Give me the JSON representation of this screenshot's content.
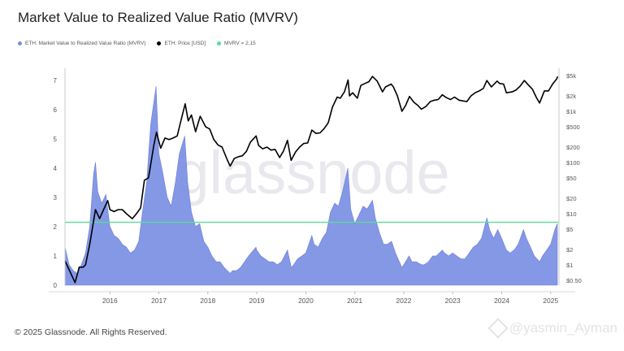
{
  "title": "Market Value to Realized Value Ratio (MVRV)",
  "legend": {
    "mvrv": "ETH: Market Value to Realized Value Ratio (MVRV)",
    "price": "ETH: Price [USD]",
    "threshold": "MVRV = 2.15"
  },
  "watermark": "glassnode",
  "copyright": "© 2025 Glassnode. All Rights Reserved.",
  "attribution": "@yasmin_Ayman",
  "colors": {
    "mvrv": "#7b8fe4",
    "price": "#000000",
    "threshold": "#58dc9a"
  },
  "chart_data": {
    "type": "area",
    "x_axis": {
      "type": "date",
      "range": [
        "2015-08-01",
        "2025-09-01"
      ],
      "ticks": [
        "2016",
        "2017",
        "2018",
        "2019",
        "2020",
        "2021",
        "2022",
        "2023",
        "2024",
        "2025"
      ]
    },
    "y_left": {
      "range": [
        0,
        7.3
      ],
      "ticks": [
        "0",
        "1",
        "2",
        "3",
        "4",
        "5",
        "6",
        "7"
      ]
    },
    "y_right": {
      "scale": "log",
      "range": [
        0.4,
        6000
      ],
      "ticks": [
        {
          "label": "$0.50",
          "value": 0.5
        },
        {
          "label": "$1",
          "value": 1
        },
        {
          "label": "$2",
          "value": 2
        },
        {
          "label": "$5",
          "value": 5
        },
        {
          "label": "$10",
          "value": 10
        },
        {
          "label": "$20",
          "value": 20
        },
        {
          "label": "$50",
          "value": 50
        },
        {
          "label": "$100",
          "value": 100
        },
        {
          "label": "$200",
          "value": 200
        },
        {
          "label": "$500",
          "value": 500
        },
        {
          "label": "$1k",
          "value": 1000
        },
        {
          "label": "$2k",
          "value": 2000
        },
        {
          "label": "$5k",
          "value": 5000
        }
      ]
    },
    "threshold": 2.15,
    "grid": false,
    "legend_position": "top-left",
    "series": [
      {
        "name": "ETH: Market Value to Realized Value Ratio (MVRV)",
        "type": "area",
        "axis": "left",
        "points": [
          [
            "2015-08-01",
            1.3
          ],
          [
            "2015-09-01",
            0.7
          ],
          [
            "2015-10-01",
            0.5
          ],
          [
            "2015-11-01",
            0.4
          ],
          [
            "2015-12-01",
            0.7
          ],
          [
            "2016-01-01",
            1.1
          ],
          [
            "2016-02-01",
            2.0
          ],
          [
            "2016-03-01",
            3.8
          ],
          [
            "2016-03-15",
            4.2
          ],
          [
            "2016-04-01",
            3.2
          ],
          [
            "2016-05-01",
            2.8
          ],
          [
            "2016-06-01",
            3.1
          ],
          [
            "2016-07-01",
            2.0
          ],
          [
            "2016-08-01",
            1.7
          ],
          [
            "2016-09-01",
            1.6
          ],
          [
            "2016-10-01",
            1.4
          ],
          [
            "2016-11-01",
            1.3
          ],
          [
            "2016-12-01",
            1.1
          ],
          [
            "2017-01-01",
            1.2
          ],
          [
            "2017-02-01",
            1.5
          ],
          [
            "2017-03-01",
            2.5
          ],
          [
            "2017-04-01",
            3.5
          ],
          [
            "2017-05-01",
            5.5
          ],
          [
            "2017-06-10",
            6.8
          ],
          [
            "2017-07-01",
            4.5
          ],
          [
            "2017-08-01",
            3.8
          ],
          [
            "2017-09-01",
            3.0
          ],
          [
            "2017-10-01",
            2.7
          ],
          [
            "2017-11-01",
            3.5
          ],
          [
            "2017-12-01",
            4.5
          ],
          [
            "2018-01-10",
            5.1
          ],
          [
            "2018-02-01",
            3.5
          ],
          [
            "2018-03-01",
            2.5
          ],
          [
            "2018-04-01",
            2.0
          ],
          [
            "2018-05-01",
            2.1
          ],
          [
            "2018-06-01",
            1.5
          ],
          [
            "2018-07-01",
            1.3
          ],
          [
            "2018-08-01",
            1.0
          ],
          [
            "2018-09-01",
            0.8
          ],
          [
            "2018-10-01",
            0.8
          ],
          [
            "2018-11-01",
            0.6
          ],
          [
            "2018-12-15",
            0.4
          ],
          [
            "2019-01-01",
            0.5
          ],
          [
            "2019-02-01",
            0.5
          ],
          [
            "2019-03-01",
            0.6
          ],
          [
            "2019-04-01",
            0.8
          ],
          [
            "2019-05-01",
            1.0
          ],
          [
            "2019-06-25",
            1.3
          ],
          [
            "2019-07-01",
            1.2
          ],
          [
            "2019-08-01",
            1.0
          ],
          [
            "2019-09-01",
            0.9
          ],
          [
            "2019-10-01",
            0.8
          ],
          [
            "2019-11-01",
            0.8
          ],
          [
            "2019-12-01",
            0.7
          ],
          [
            "2020-01-01",
            0.8
          ],
          [
            "2020-02-15",
            1.2
          ],
          [
            "2020-03-15",
            0.6
          ],
          [
            "2020-04-01",
            0.7
          ],
          [
            "2020-05-01",
            0.9
          ],
          [
            "2020-06-01",
            1.0
          ],
          [
            "2020-07-01",
            1.1
          ],
          [
            "2020-08-15",
            1.7
          ],
          [
            "2020-09-01",
            1.4
          ],
          [
            "2020-10-01",
            1.3
          ],
          [
            "2020-11-01",
            1.6
          ],
          [
            "2020-12-01",
            1.8
          ],
          [
            "2021-01-01",
            2.5
          ],
          [
            "2021-02-01",
            2.8
          ],
          [
            "2021-03-01",
            2.7
          ],
          [
            "2021-04-01",
            3.2
          ],
          [
            "2021-05-10",
            4.0
          ],
          [
            "2021-06-01",
            2.6
          ],
          [
            "2021-07-01",
            2.1
          ],
          [
            "2021-08-01",
            2.4
          ],
          [
            "2021-09-01",
            2.7
          ],
          [
            "2021-10-01",
            2.6
          ],
          [
            "2021-11-10",
            2.9
          ],
          [
            "2021-12-01",
            2.3
          ],
          [
            "2022-01-01",
            1.8
          ],
          [
            "2022-02-01",
            1.4
          ],
          [
            "2022-03-01",
            1.4
          ],
          [
            "2022-04-01",
            1.5
          ],
          [
            "2022-05-01",
            1.1
          ],
          [
            "2022-06-18",
            0.6
          ],
          [
            "2022-07-01",
            0.7
          ],
          [
            "2022-08-10",
            1.0
          ],
          [
            "2022-09-01",
            0.8
          ],
          [
            "2022-10-01",
            0.8
          ],
          [
            "2022-11-10",
            0.7
          ],
          [
            "2022-12-01",
            0.7
          ],
          [
            "2023-01-01",
            0.8
          ],
          [
            "2023-02-01",
            1.0
          ],
          [
            "2023-03-01",
            1.0
          ],
          [
            "2023-04-15",
            1.2
          ],
          [
            "2023-05-01",
            1.1
          ],
          [
            "2023-06-01",
            1.0
          ],
          [
            "2023-07-01",
            1.1
          ],
          [
            "2023-08-01",
            1.0
          ],
          [
            "2023-09-01",
            0.9
          ],
          [
            "2023-10-01",
            0.9
          ],
          [
            "2023-11-01",
            1.1
          ],
          [
            "2023-12-01",
            1.3
          ],
          [
            "2024-01-01",
            1.4
          ],
          [
            "2024-02-01",
            1.6
          ],
          [
            "2024-03-12",
            2.3
          ],
          [
            "2024-04-01",
            1.9
          ],
          [
            "2024-05-01",
            1.6
          ],
          [
            "2024-06-01",
            1.9
          ],
          [
            "2024-07-01",
            1.6
          ],
          [
            "2024-08-05",
            1.2
          ],
          [
            "2024-09-01",
            1.1
          ],
          [
            "2024-10-01",
            1.2
          ],
          [
            "2024-11-01",
            1.4
          ],
          [
            "2024-12-10",
            1.9
          ],
          [
            "2025-01-01",
            1.6
          ],
          [
            "2025-02-01",
            1.3
          ],
          [
            "2025-03-01",
            1.0
          ],
          [
            "2025-04-09",
            0.8
          ],
          [
            "2025-05-01",
            1.0
          ],
          [
            "2025-06-01",
            1.2
          ],
          [
            "2025-07-01",
            1.4
          ],
          [
            "2025-08-01",
            1.9
          ],
          [
            "2025-08-20",
            2.1
          ]
        ]
      },
      {
        "name": "ETH: Price [USD]",
        "type": "line",
        "axis": "right",
        "points": [
          [
            "2015-08-01",
            1.2
          ],
          [
            "2015-09-01",
            0.8
          ],
          [
            "2015-10-15",
            0.45
          ],
          [
            "2015-11-15",
            0.9
          ],
          [
            "2015-12-15",
            0.9
          ],
          [
            "2016-01-01",
            1.0
          ],
          [
            "2016-02-01",
            2.5
          ],
          [
            "2016-03-15",
            12
          ],
          [
            "2016-04-15",
            8
          ],
          [
            "2016-05-15",
            12
          ],
          [
            "2016-06-15",
            18
          ],
          [
            "2016-07-01",
            12
          ],
          [
            "2016-08-01",
            11
          ],
          [
            "2016-09-01",
            12
          ],
          [
            "2016-10-01",
            12
          ],
          [
            "2016-11-01",
            10
          ],
          [
            "2016-12-15",
            8
          ],
          [
            "2017-01-15",
            10
          ],
          [
            "2017-02-15",
            13
          ],
          [
            "2017-03-15",
            45
          ],
          [
            "2017-04-15",
            50
          ],
          [
            "2017-05-25",
            220
          ],
          [
            "2017-06-13",
            390
          ],
          [
            "2017-07-15",
            190
          ],
          [
            "2017-08-15",
            300
          ],
          [
            "2017-09-15",
            280
          ],
          [
            "2017-10-15",
            300
          ],
          [
            "2017-11-15",
            330
          ],
          [
            "2017-12-15",
            700
          ],
          [
            "2018-01-13",
            1400
          ],
          [
            "2018-02-05",
            650
          ],
          [
            "2018-03-01",
            850
          ],
          [
            "2018-04-01",
            400
          ],
          [
            "2018-05-05",
            800
          ],
          [
            "2018-06-15",
            500
          ],
          [
            "2018-07-15",
            450
          ],
          [
            "2018-08-15",
            280
          ],
          [
            "2018-09-15",
            220
          ],
          [
            "2018-10-15",
            200
          ],
          [
            "2018-11-25",
            110
          ],
          [
            "2018-12-15",
            85
          ],
          [
            "2019-01-15",
            120
          ],
          [
            "2019-02-15",
            130
          ],
          [
            "2019-03-15",
            135
          ],
          [
            "2019-04-15",
            165
          ],
          [
            "2019-05-15",
            250
          ],
          [
            "2019-06-26",
            330
          ],
          [
            "2019-07-15",
            215
          ],
          [
            "2019-08-15",
            185
          ],
          [
            "2019-09-15",
            200
          ],
          [
            "2019-10-15",
            175
          ],
          [
            "2019-11-15",
            180
          ],
          [
            "2019-12-18",
            125
          ],
          [
            "2020-01-15",
            165
          ],
          [
            "2020-02-15",
            270
          ],
          [
            "2020-03-13",
            110
          ],
          [
            "2020-04-15",
            160
          ],
          [
            "2020-05-15",
            200
          ],
          [
            "2020-06-15",
            235
          ],
          [
            "2020-07-15",
            240
          ],
          [
            "2020-08-15",
            430
          ],
          [
            "2020-09-15",
            370
          ],
          [
            "2020-10-15",
            380
          ],
          [
            "2020-11-15",
            460
          ],
          [
            "2020-12-15",
            600
          ],
          [
            "2021-01-15",
            1200
          ],
          [
            "2021-02-20",
            1900
          ],
          [
            "2021-03-15",
            1800
          ],
          [
            "2021-04-15",
            2400
          ],
          [
            "2021-05-12",
            4100
          ],
          [
            "2021-05-23",
            2000
          ],
          [
            "2021-06-15",
            2300
          ],
          [
            "2021-07-20",
            1800
          ],
          [
            "2021-08-15",
            3200
          ],
          [
            "2021-09-15",
            3500
          ],
          [
            "2021-10-15",
            3800
          ],
          [
            "2021-11-10",
            4800
          ],
          [
            "2021-12-15",
            3900
          ],
          [
            "2022-01-24",
            2400
          ],
          [
            "2022-02-15",
            3000
          ],
          [
            "2022-03-29",
            3400
          ],
          [
            "2022-04-15",
            3000
          ],
          [
            "2022-05-15",
            2000
          ],
          [
            "2022-06-18",
            1000
          ],
          [
            "2022-07-15",
            1300
          ],
          [
            "2022-08-13",
            1950
          ],
          [
            "2022-09-15",
            1500
          ],
          [
            "2022-10-15",
            1300
          ],
          [
            "2022-11-09",
            1100
          ],
          [
            "2022-12-15",
            1250
          ],
          [
            "2023-01-15",
            1550
          ],
          [
            "2023-02-15",
            1650
          ],
          [
            "2023-03-15",
            1700
          ],
          [
            "2023-04-15",
            2100
          ],
          [
            "2023-05-15",
            1850
          ],
          [
            "2023-06-15",
            1700
          ],
          [
            "2023-07-15",
            1900
          ],
          [
            "2023-08-18",
            1650
          ],
          [
            "2023-09-15",
            1600
          ],
          [
            "2023-10-15",
            1550
          ],
          [
            "2023-11-15",
            2000
          ],
          [
            "2023-12-15",
            2300
          ],
          [
            "2024-01-15",
            2500
          ],
          [
            "2024-02-15",
            2800
          ],
          [
            "2024-03-12",
            4000
          ],
          [
            "2024-04-15",
            3000
          ],
          [
            "2024-05-27",
            3900
          ],
          [
            "2024-06-15",
            3500
          ],
          [
            "2024-07-15",
            3400
          ],
          [
            "2024-08-05",
            2300
          ],
          [
            "2024-09-15",
            2400
          ],
          [
            "2024-10-15",
            2600
          ],
          [
            "2024-11-15",
            3100
          ],
          [
            "2024-12-16",
            4000
          ],
          [
            "2025-01-15",
            3300
          ],
          [
            "2025-02-15",
            2700
          ],
          [
            "2025-03-15",
            1900
          ],
          [
            "2025-04-09",
            1450
          ],
          [
            "2025-05-15",
            2500
          ],
          [
            "2025-06-15",
            2500
          ],
          [
            "2025-07-15",
            3400
          ],
          [
            "2025-08-15",
            4300
          ],
          [
            "2025-08-22",
            4800
          ]
        ]
      }
    ]
  }
}
